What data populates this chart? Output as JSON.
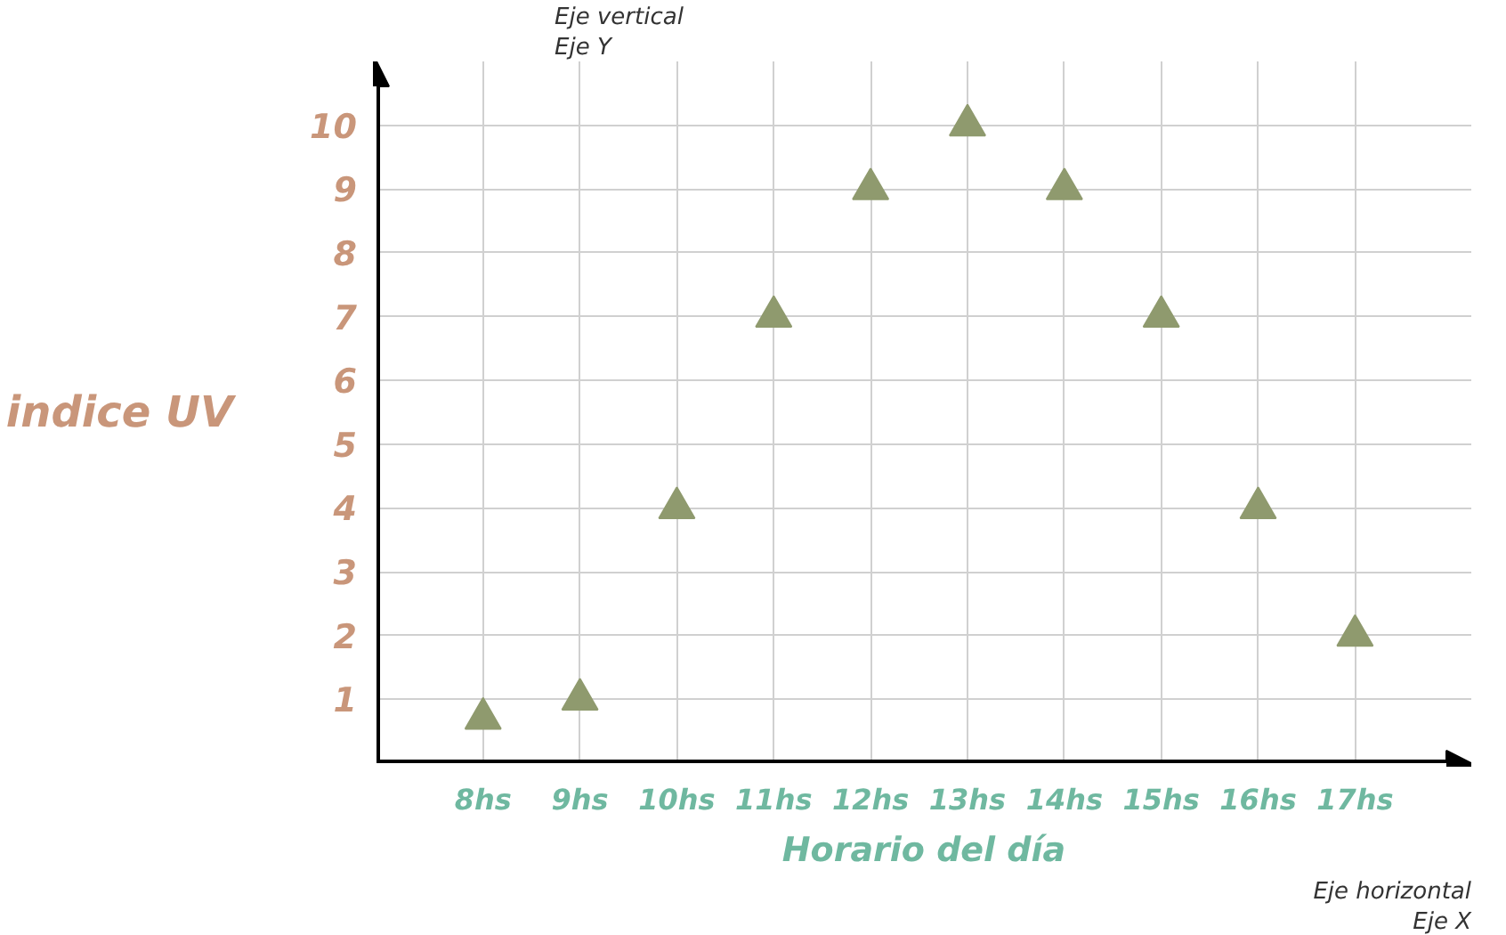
{
  "chart_data": {
    "type": "scatter",
    "xlabel": "Horario del día",
    "ylabel": "indice UV",
    "annotations": [
      "Eje vertical",
      "Eje Y",
      "Eje horizontal",
      "Eje X"
    ],
    "x": [
      8,
      9,
      10,
      11,
      12,
      13,
      14,
      15,
      16,
      17
    ],
    "series": [
      {
        "color": "#8f9a6e",
        "values": [
          0.7,
          1,
          4,
          7,
          9,
          10,
          9,
          7,
          4,
          2
        ]
      }
    ],
    "xlim": [
      6.9,
      18.2
    ],
    "ylim": [
      0,
      11
    ],
    "xticks": [
      {
        "value": 8,
        "label": "8hs"
      },
      {
        "value": 9,
        "label": "9hs"
      },
      {
        "value": 10,
        "label": "10hs"
      },
      {
        "value": 11,
        "label": "11hs"
      },
      {
        "value": 12,
        "label": "12hs"
      },
      {
        "value": 13,
        "label": "13hs"
      },
      {
        "value": 14,
        "label": "14hs"
      },
      {
        "value": 15,
        "label": "15hs"
      },
      {
        "value": 16,
        "label": "16hs"
      },
      {
        "value": 17,
        "label": "17hs"
      }
    ],
    "yticks": [
      1,
      2,
      3,
      4,
      5,
      6,
      7,
      8,
      9,
      10
    ],
    "grid": true,
    "marker": "triangle"
  }
}
